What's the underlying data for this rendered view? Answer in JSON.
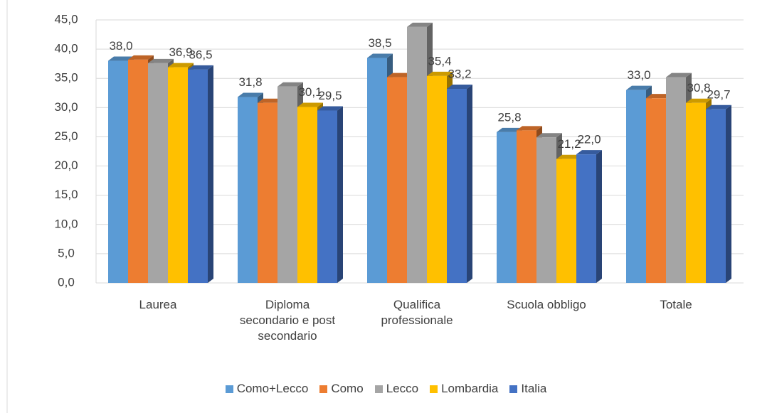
{
  "chart_data": {
    "type": "bar3d",
    "categories": [
      "Laurea",
      "Diploma secondario e post secondario",
      "Qualifica professionale",
      "Scuola obbligo",
      "Totale"
    ],
    "series": [
      {
        "name": "Como+Lecco",
        "color": "#5b9bd5",
        "values": [
          38.0,
          31.8,
          38.5,
          25.8,
          33.0
        ],
        "value_labels": [
          "38,0",
          "31,8",
          "38,5",
          "25,8",
          "33,0"
        ]
      },
      {
        "name": "Como",
        "color": "#ed7d31",
        "values": [
          38.2,
          30.8,
          35.2,
          26.1,
          31.6
        ]
      },
      {
        "name": "Lecco",
        "color": "#a5a5a5",
        "values": [
          37.6,
          33.6,
          43.8,
          24.9,
          35.2
        ]
      },
      {
        "name": "Lombardia",
        "color": "#ffc000",
        "values": [
          36.9,
          30.1,
          35.4,
          21.2,
          30.8
        ],
        "value_labels": [
          "36,9",
          "30,1",
          "35,4",
          "21,2",
          "30,8"
        ]
      },
      {
        "name": "Italia",
        "color": "#4472c4",
        "values": [
          36.5,
          29.5,
          33.2,
          22.0,
          29.7
        ],
        "value_labels": [
          "36,5",
          "29,5",
          "33,2",
          "22,0",
          "29,7"
        ]
      }
    ],
    "ylim": [
      0,
      45
    ],
    "yticks": [
      {
        "value": 0,
        "label": "0,0"
      },
      {
        "value": 5,
        "label": "5,0"
      },
      {
        "value": 10,
        "label": "10,0"
      },
      {
        "value": 15,
        "label": "15,0"
      },
      {
        "value": 20,
        "label": "20,0"
      },
      {
        "value": 25,
        "label": "25,0"
      },
      {
        "value": 30,
        "label": "30,0"
      },
      {
        "value": 35,
        "label": "35,0"
      },
      {
        "value": 40,
        "label": "40,0"
      },
      {
        "value": 45,
        "label": "45,0"
      }
    ],
    "grid": true,
    "legend": "bottom"
  }
}
